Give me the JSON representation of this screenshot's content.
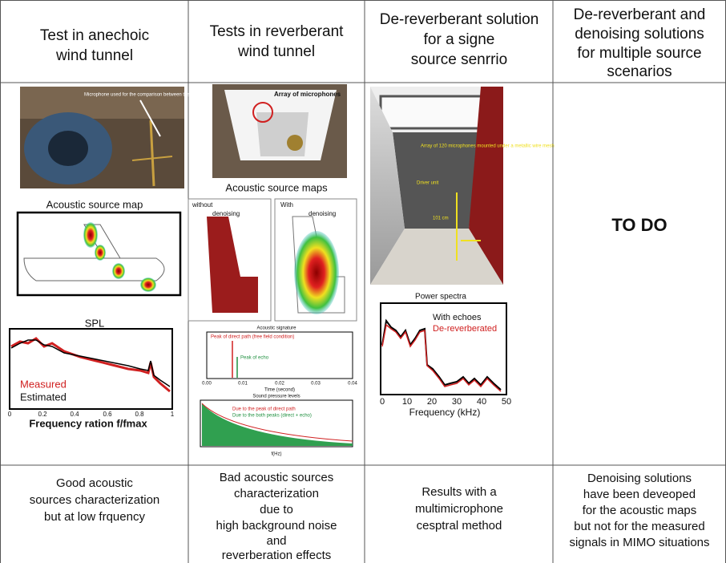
{
  "header": [
    [
      "Test in anechoic",
      "wind tunnel"
    ],
    [
      "Tests in reverberant",
      "wind tunnel"
    ],
    [
      "De-reverberant solution",
      "for a signe",
      "source senrrio"
    ],
    [
      "De-reverberant and",
      "denoising solutions",
      "for multiple source",
      "scenarios"
    ]
  ],
  "panels": [
    {
      "photo_caption": "Microphone used for the comparison between the SEM results and the measurements",
      "map_title": "Acoustic source map",
      "plot": {
        "title": "SPL",
        "legend": [
          "Measured",
          "Estimated"
        ],
        "xticks": [
          "0",
          "0.2",
          "0.4",
          "0.6",
          "0.8",
          "1"
        ],
        "xlabel": "Frequency ration f/fmax"
      }
    },
    {
      "photo_caption": "Array of microphones",
      "map_title": "Acoustic source maps",
      "maps": [
        [
          "without",
          "denoising"
        ],
        [
          "With",
          "denoising"
        ]
      ],
      "signature": {
        "title": "Acoustic signature",
        "labels": [
          "Peak of direct path (free field condition)",
          "Peak of echo"
        ],
        "xticks": [
          "0.00",
          "0.01",
          "0.02",
          "0.03",
          "0.04"
        ],
        "xlabel": "Time (second)"
      },
      "spl": {
        "title": "Sound pressure levels",
        "labels": [
          "Due to the peak of direct path",
          "Due to the both peaks (direct + echo)"
        ],
        "xlabel": "f(Hz)"
      }
    },
    {
      "photo_labels": [
        "Array of 120 microphones mounted under a metallic wire mesh",
        "Driver unit",
        "101 cm"
      ],
      "plot": {
        "title": "Power spectra",
        "legend": [
          "With echoes",
          "De-reverberated"
        ],
        "xticks": [
          "0",
          "10",
          "20",
          "30",
          "40",
          "50"
        ],
        "xlabel": "Frequency (kHz)"
      }
    },
    {
      "status": "TO DO"
    }
  ],
  "footer": [
    [
      "Good acoustic",
      "sources characterization",
      "but at low frquency"
    ],
    [
      "Bad acoustic sources",
      "characterization",
      "due to",
      "high background noise",
      "and",
      "reverberation effects"
    ],
    [
      "Results with a",
      "multimicrophone",
      "cesptral method"
    ],
    [
      "Denoising solutions",
      "have been deveoped",
      "for the acoustic maps",
      "but not for the measured",
      "signals in MIMO situations"
    ]
  ]
}
